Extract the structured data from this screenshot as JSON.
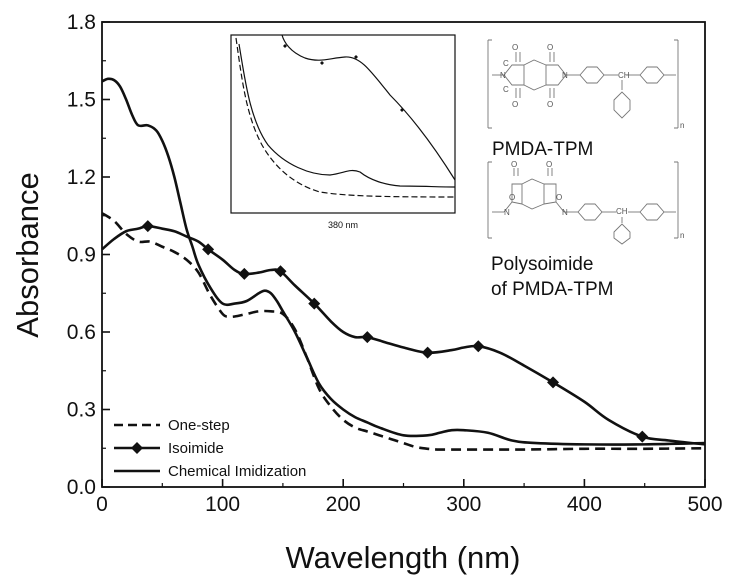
{
  "chart_data": {
    "type": "line",
    "xlabel": "Wavelength (nm)",
    "ylabel": "Absorbance",
    "xlim": [
      0,
      500
    ],
    "ylim": [
      0.0,
      1.8
    ],
    "x_ticks": [
      "0",
      "100",
      "200",
      "300",
      "400",
      "500"
    ],
    "y_ticks": [
      "0.0",
      "0.3",
      "0.6",
      "0.9",
      "1.2",
      "1.5",
      "1.8"
    ],
    "grid": false,
    "legend_position": "bottom-left",
    "series": [
      {
        "name": "One-step",
        "style": "dashed",
        "x": [
          0,
          10,
          20,
          30,
          40,
          50,
          60,
          70,
          80,
          90,
          100,
          105,
          110,
          120,
          130,
          140,
          150,
          160,
          170,
          180,
          190,
          200,
          210,
          220,
          230,
          240,
          250,
          260,
          270,
          280,
          300,
          350,
          400,
          450,
          500
        ],
        "y": [
          1.06,
          1.03,
          0.98,
          0.95,
          0.95,
          0.93,
          0.91,
          0.88,
          0.83,
          0.74,
          0.67,
          0.66,
          0.66,
          0.67,
          0.68,
          0.68,
          0.67,
          0.61,
          0.5,
          0.38,
          0.31,
          0.26,
          0.23,
          0.215,
          0.2,
          0.185,
          0.17,
          0.155,
          0.148,
          0.145,
          0.145,
          0.145,
          0.148,
          0.148,
          0.15
        ]
      },
      {
        "name": "Isoimide",
        "style": "solid-diamond",
        "x": [
          0,
          10,
          20,
          30,
          38,
          50,
          60,
          70,
          80,
          88,
          100,
          110,
          118,
          130,
          140,
          148,
          160,
          176,
          190,
          200,
          210,
          220,
          235,
          250,
          270,
          290,
          300,
          312,
          330,
          350,
          374,
          400,
          420,
          448,
          470,
          500
        ],
        "y": [
          0.92,
          0.96,
          0.99,
          1.0,
          1.01,
          1.0,
          0.99,
          0.97,
          0.95,
          0.92,
          0.88,
          0.84,
          0.825,
          0.83,
          0.84,
          0.835,
          0.78,
          0.71,
          0.64,
          0.6,
          0.58,
          0.58,
          0.56,
          0.54,
          0.52,
          0.53,
          0.54,
          0.545,
          0.52,
          0.47,
          0.405,
          0.33,
          0.26,
          0.195,
          0.18,
          0.165
        ]
      },
      {
        "name": "Chemical Imidization",
        "style": "solid",
        "x": [
          0,
          5,
          10,
          15,
          20,
          25,
          30,
          38,
          45,
          50,
          55,
          60,
          65,
          70,
          75,
          80,
          90,
          100,
          110,
          120,
          130,
          135,
          140,
          145,
          150,
          160,
          170,
          180,
          190,
          200,
          210,
          220,
          230,
          250,
          270,
          280,
          290,
          300,
          320,
          340,
          360,
          400,
          450,
          500
        ],
        "y": [
          1.57,
          1.58,
          1.575,
          1.55,
          1.5,
          1.44,
          1.4,
          1.4,
          1.38,
          1.34,
          1.28,
          1.2,
          1.1,
          1.0,
          0.93,
          0.86,
          0.77,
          0.71,
          0.71,
          0.72,
          0.75,
          0.76,
          0.75,
          0.72,
          0.68,
          0.6,
          0.5,
          0.4,
          0.34,
          0.3,
          0.27,
          0.25,
          0.23,
          0.2,
          0.2,
          0.21,
          0.22,
          0.22,
          0.21,
          0.18,
          0.17,
          0.165,
          0.165,
          0.17
        ]
      }
    ],
    "inset": {
      "xlabel": "380 nm",
      "note": "zoomed view around 380 nm"
    },
    "annotations": [
      "PMDA-TPM",
      "Polysoimide",
      "of PMDA-TPM"
    ],
    "structure_label_n": "n"
  }
}
